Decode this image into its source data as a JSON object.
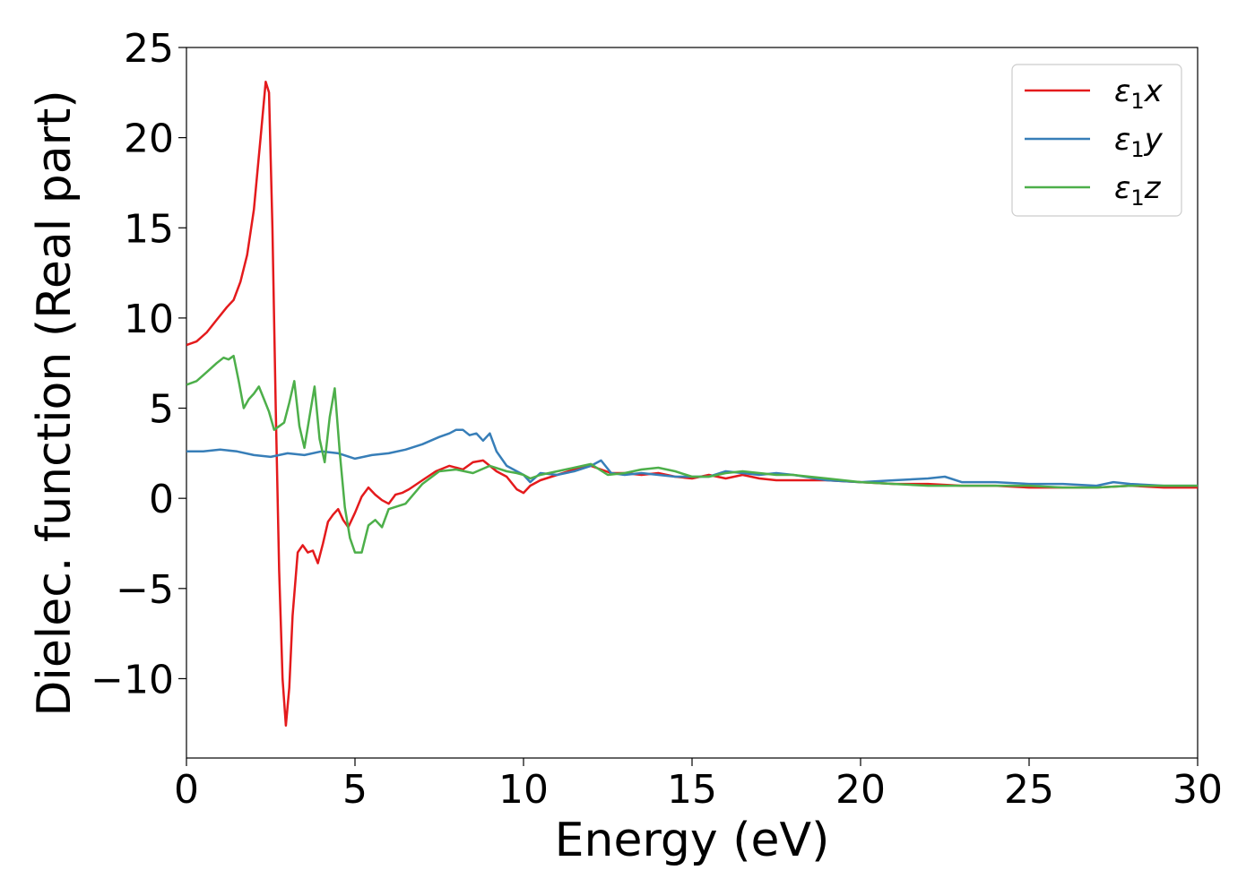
{
  "chart_data": {
    "type": "line",
    "xlabel": "Energy (eV)",
    "ylabel": "Dielec. function (Real part)",
    "xlim": [
      0,
      30
    ],
    "ylim": [
      -14.4,
      25
    ],
    "xticks": [
      0,
      5,
      10,
      15,
      20,
      25,
      30
    ],
    "xtick_labels": [
      "0",
      "5",
      "10",
      "15",
      "20",
      "25",
      "30"
    ],
    "yticks": [
      -10,
      -5,
      0,
      5,
      10,
      15,
      20,
      25
    ],
    "ytick_labels": [
      "−10",
      "−5",
      "0",
      "5",
      "10",
      "15",
      "20",
      "25"
    ],
    "grid": false,
    "legend_position": "top-right",
    "series": [
      {
        "name": "ε1x",
        "name_base": "ε",
        "name_sub": "1",
        "name_var": "x",
        "color": "#e41a1c",
        "x": [
          0,
          0.3,
          0.6,
          0.9,
          1.2,
          1.4,
          1.6,
          1.8,
          2.0,
          2.2,
          2.35,
          2.45,
          2.55,
          2.65,
          2.75,
          2.85,
          2.95,
          3.05,
          3.15,
          3.3,
          3.45,
          3.6,
          3.75,
          3.9,
          4.05,
          4.2,
          4.35,
          4.5,
          4.65,
          4.8,
          5.0,
          5.2,
          5.4,
          5.6,
          5.8,
          6.0,
          6.2,
          6.4,
          6.6,
          7.0,
          7.4,
          7.8,
          8.2,
          8.5,
          8.8,
          9.0,
          9.2,
          9.5,
          9.8,
          10.0,
          10.2,
          10.5,
          11.0,
          11.5,
          12.0,
          12.3,
          12.6,
          13.0,
          13.5,
          14.0,
          14.5,
          15.0,
          15.5,
          16.0,
          16.5,
          17.0,
          17.5,
          18.0,
          19.0,
          20.0,
          21.0,
          22.0,
          23.0,
          24.0,
          25.0,
          26.0,
          27.0,
          28.0,
          29.0,
          30.0
        ],
        "values": [
          8.5,
          8.7,
          9.2,
          9.9,
          10.6,
          11.0,
          12.0,
          13.5,
          16.0,
          20.0,
          23.1,
          22.5,
          15.0,
          5.0,
          -4.0,
          -10.0,
          -12.6,
          -10.5,
          -6.5,
          -3.0,
          -2.6,
          -3.0,
          -2.9,
          -3.6,
          -2.5,
          -1.3,
          -0.9,
          -0.6,
          -1.2,
          -1.6,
          -0.8,
          0.1,
          0.6,
          0.2,
          -0.1,
          -0.3,
          0.2,
          0.3,
          0.5,
          1.0,
          1.5,
          1.8,
          1.6,
          2.0,
          2.1,
          1.8,
          1.5,
          1.2,
          0.5,
          0.3,
          0.7,
          1.0,
          1.3,
          1.6,
          1.8,
          1.6,
          1.4,
          1.4,
          1.3,
          1.4,
          1.2,
          1.1,
          1.3,
          1.1,
          1.3,
          1.1,
          1.0,
          1.0,
          1.0,
          0.9,
          0.8,
          0.8,
          0.7,
          0.7,
          0.6,
          0.6,
          0.6,
          0.7,
          0.6,
          0.6
        ]
      },
      {
        "name": "ε1y",
        "name_base": "ε",
        "name_sub": "1",
        "name_var": "y",
        "color": "#377eb8",
        "x": [
          0,
          0.5,
          1.0,
          1.5,
          2.0,
          2.5,
          3.0,
          3.5,
          4.0,
          4.5,
          5.0,
          5.5,
          6.0,
          6.5,
          7.0,
          7.5,
          7.8,
          8.0,
          8.2,
          8.4,
          8.6,
          8.8,
          9.0,
          9.2,
          9.5,
          9.8,
          10.0,
          10.2,
          10.5,
          11.0,
          11.5,
          12.0,
          12.3,
          12.6,
          13.0,
          13.5,
          14.0,
          14.5,
          15.0,
          15.5,
          16.0,
          16.5,
          17.0,
          17.5,
          18.0,
          19.0,
          20.0,
          21.0,
          22.0,
          22.5,
          23.0,
          24.0,
          25.0,
          26.0,
          27.0,
          27.5,
          28.0,
          29.0,
          30.0
        ],
        "values": [
          2.6,
          2.6,
          2.7,
          2.6,
          2.4,
          2.3,
          2.5,
          2.4,
          2.6,
          2.5,
          2.2,
          2.4,
          2.5,
          2.7,
          3.0,
          3.4,
          3.6,
          3.8,
          3.8,
          3.5,
          3.6,
          3.2,
          3.6,
          2.6,
          1.8,
          1.5,
          1.3,
          0.9,
          1.4,
          1.3,
          1.5,
          1.8,
          2.1,
          1.4,
          1.3,
          1.4,
          1.3,
          1.2,
          1.2,
          1.2,
          1.5,
          1.4,
          1.3,
          1.4,
          1.3,
          1.0,
          0.9,
          1.0,
          1.1,
          1.2,
          0.9,
          0.9,
          0.8,
          0.8,
          0.7,
          0.9,
          0.8,
          0.7,
          0.7
        ]
      },
      {
        "name": "ε1z",
        "name_base": "ε",
        "name_sub": "1",
        "name_var": "z",
        "color": "#4daf4a",
        "x": [
          0,
          0.3,
          0.6,
          0.9,
          1.1,
          1.25,
          1.4,
          1.55,
          1.7,
          1.85,
          2.0,
          2.15,
          2.3,
          2.45,
          2.6,
          2.75,
          2.9,
          3.05,
          3.2,
          3.35,
          3.5,
          3.65,
          3.8,
          3.95,
          4.1,
          4.25,
          4.4,
          4.55,
          4.7,
          4.85,
          5.0,
          5.2,
          5.4,
          5.6,
          5.8,
          6.0,
          6.5,
          7.0,
          7.5,
          8.0,
          8.5,
          9.0,
          9.5,
          9.8,
          10.0,
          10.2,
          10.5,
          11.0,
          11.5,
          12.0,
          12.5,
          13.0,
          13.5,
          14.0,
          14.5,
          15.0,
          15.5,
          16.0,
          16.5,
          17.0,
          17.5,
          18.0,
          19.0,
          20.0,
          21.0,
          22.0,
          23.0,
          24.0,
          25.0,
          26.0,
          27.0,
          28.0,
          29.0,
          30.0
        ],
        "values": [
          6.3,
          6.5,
          7.0,
          7.5,
          7.8,
          7.7,
          7.9,
          6.5,
          5.0,
          5.5,
          5.8,
          6.2,
          5.5,
          4.8,
          3.8,
          4.0,
          4.2,
          5.3,
          6.5,
          4.0,
          2.8,
          4.5,
          6.2,
          3.3,
          2.0,
          4.5,
          6.1,
          2.5,
          -0.5,
          -2.2,
          -3.0,
          -3.0,
          -1.5,
          -1.2,
          -1.6,
          -0.6,
          -0.3,
          0.8,
          1.5,
          1.6,
          1.4,
          1.8,
          1.5,
          1.4,
          1.3,
          1.1,
          1.3,
          1.5,
          1.7,
          1.9,
          1.3,
          1.4,
          1.6,
          1.7,
          1.5,
          1.2,
          1.2,
          1.4,
          1.5,
          1.4,
          1.3,
          1.3,
          1.1,
          0.9,
          0.8,
          0.7,
          0.7,
          0.7,
          0.7,
          0.6,
          0.6,
          0.7,
          0.7,
          0.7
        ]
      }
    ]
  }
}
